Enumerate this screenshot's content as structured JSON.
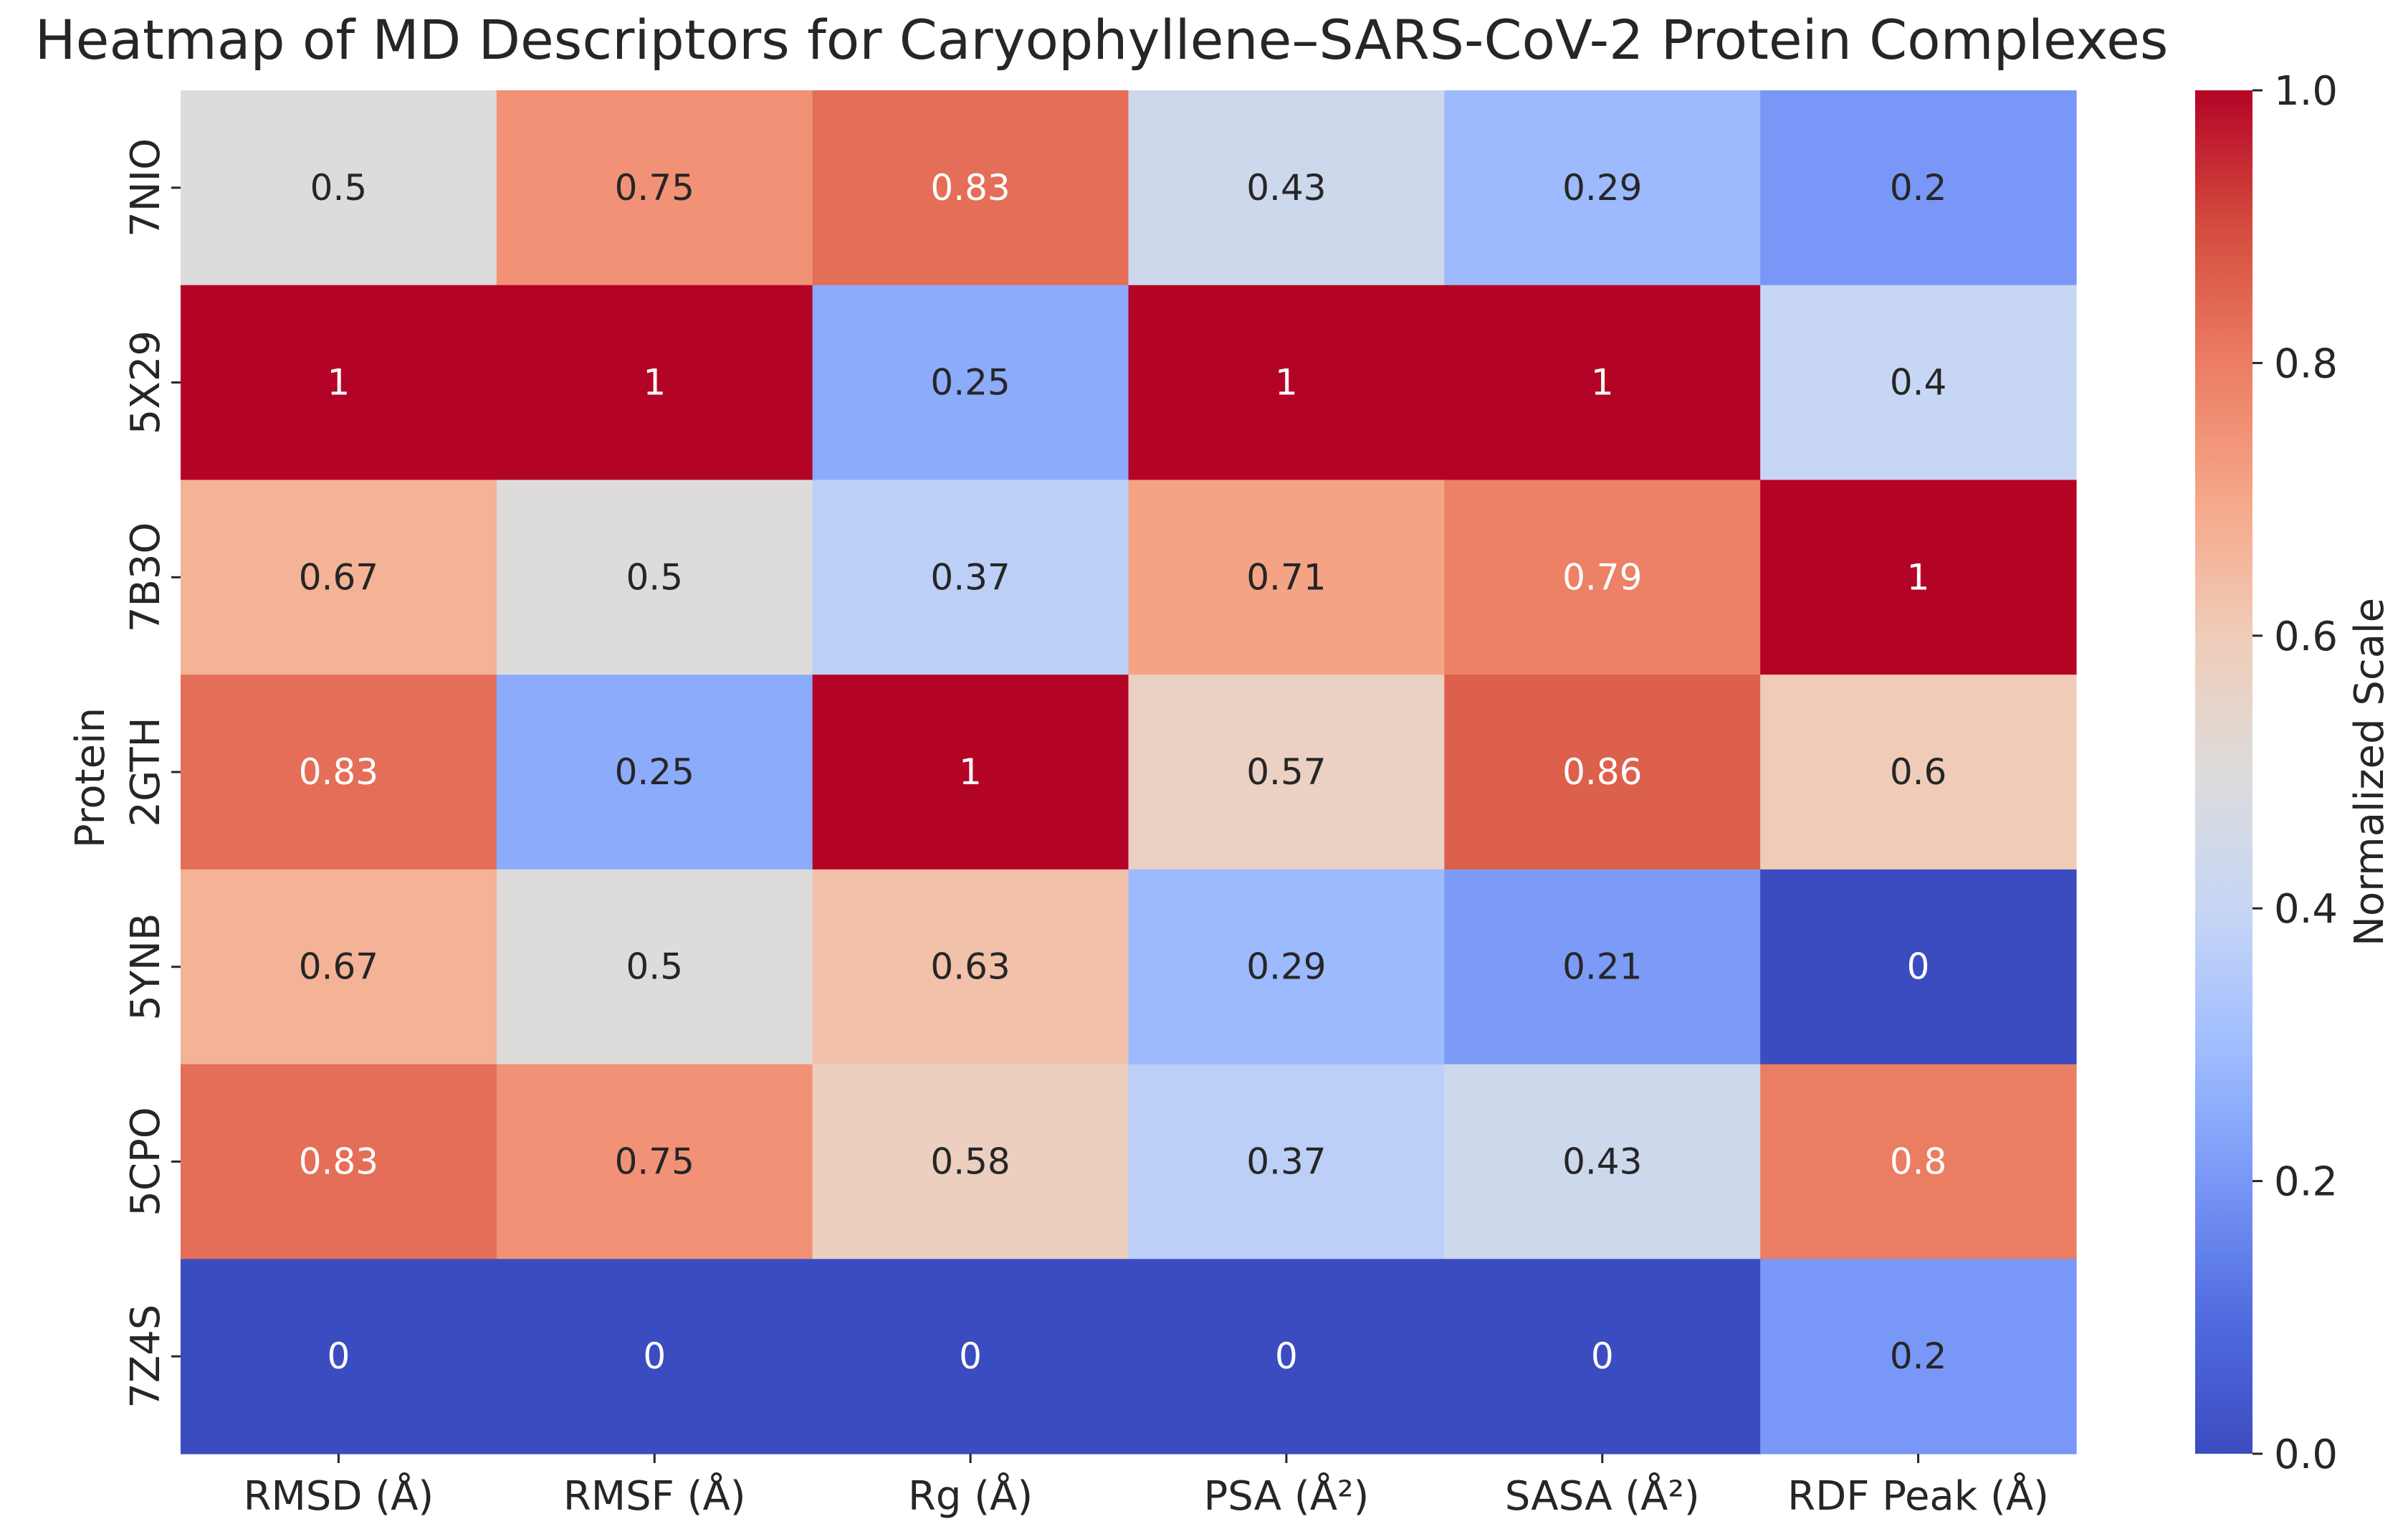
{
  "chart_data": {
    "type": "heatmap",
    "title": "Heatmap of MD Descriptors for Caryophyllene–SARS-CoV-2 Protein Complexes",
    "xlabel": "",
    "ylabel": "Protein",
    "columns": [
      "RMSD (Å)",
      "RMSF (Å)",
      "Rg (Å)",
      "PSA (Å²)",
      "SASA (Å²)",
      "RDF Peak (Å)"
    ],
    "rows": [
      "7NIO",
      "5X29",
      "7B3O",
      "2GTH",
      "5YNB",
      "5CPO",
      "7Z4S"
    ],
    "values": [
      [
        0.5,
        0.75,
        0.83,
        0.43,
        0.29,
        0.2
      ],
      [
        1,
        1,
        0.25,
        1,
        1,
        0.4
      ],
      [
        0.67,
        0.5,
        0.37,
        0.71,
        0.79,
        1
      ],
      [
        0.83,
        0.25,
        1,
        0.57,
        0.86,
        0.6
      ],
      [
        0.67,
        0.5,
        0.63,
        0.29,
        0.21,
        0
      ],
      [
        0.83,
        0.75,
        0.58,
        0.37,
        0.43,
        0.8
      ],
      [
        0,
        0,
        0,
        0,
        0,
        0.2
      ]
    ],
    "colormap": "coolwarm",
    "vmin": 0,
    "vmax": 1,
    "colorbar": {
      "label": "Normalized Scale",
      "ticks": [
        0.0,
        0.2,
        0.4,
        0.6,
        0.8,
        1.0
      ],
      "tick_labels": [
        "0.0",
        "0.2",
        "0.4",
        "0.6",
        "0.8",
        "1.0"
      ]
    },
    "annotate": true
  }
}
